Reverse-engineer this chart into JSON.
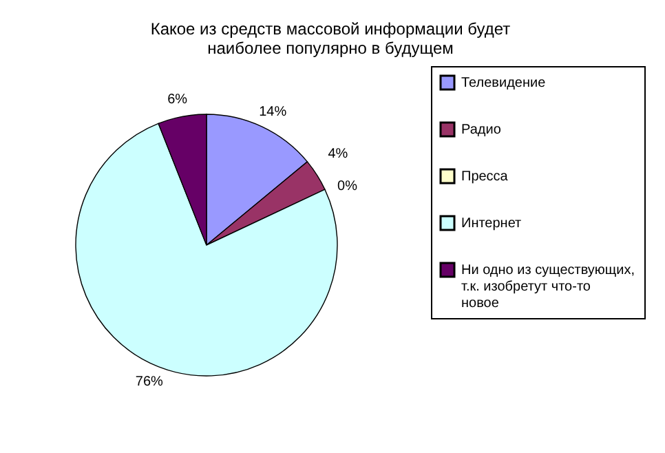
{
  "chart_data": {
    "type": "pie",
    "title": "Какое из средств массовой информации будет наиболее популярно в будущем",
    "categories": [
      "Телевидение",
      "Радио",
      "Пресса",
      "Интернет",
      "Ни одно из существующих, т.к. изобретут что-то новое"
    ],
    "values": [
      14,
      4,
      0,
      76,
      6
    ],
    "colors": [
      "#9999ff",
      "#993366",
      "#ffffcc",
      "#ccffff",
      "#660066"
    ],
    "value_labels": [
      "14%",
      "4%",
      "0%",
      "76%",
      "6%"
    ],
    "legend": "right"
  }
}
